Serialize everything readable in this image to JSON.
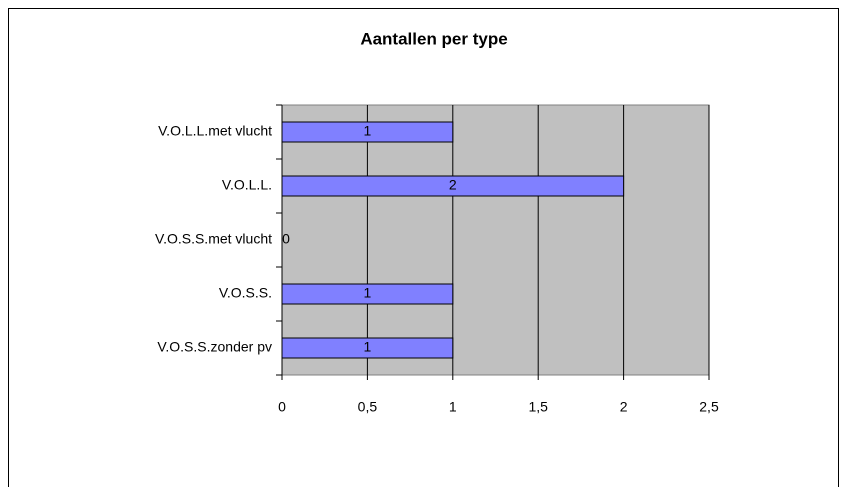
{
  "chart_data": {
    "type": "bar",
    "orientation": "horizontal",
    "title": "Aantallen per type",
    "categories": [
      "V.O.L.L.met vlucht",
      "V.O.L.L.",
      "V.O.S.S.met vlucht",
      "V.O.S.S.",
      "V.O.S.S.zonder pv"
    ],
    "values": [
      1,
      2,
      0,
      1,
      1
    ],
    "color": "#8080ff",
    "xlim": [
      0,
      2.5
    ],
    "xticks": [
      0,
      {
        "value": 0.5,
        "label": "0,5"
      },
      1,
      {
        "value": 1.5,
        "label": "1,5"
      },
      2,
      {
        "value": 2.5,
        "label": "2,5"
      }
    ],
    "grid": true
  }
}
